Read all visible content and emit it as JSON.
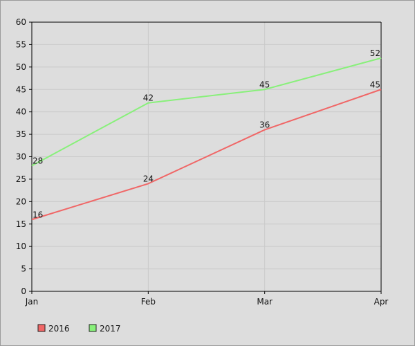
{
  "chart_data": {
    "type": "line",
    "categories": [
      "Jan",
      "Feb",
      "Mar",
      "Apr"
    ],
    "series": [
      {
        "name": "2016",
        "values": [
          16,
          24,
          36,
          45
        ],
        "color": "#f06666"
      },
      {
        "name": "2017",
        "values": [
          28,
          42,
          45,
          52
        ],
        "color": "#88f07a"
      }
    ],
    "ylim": [
      0,
      60
    ],
    "y_ticks": [
      0,
      5,
      10,
      15,
      20,
      25,
      30,
      35,
      40,
      45,
      50,
      55,
      60
    ],
    "grid": true,
    "legend_position": "bottom-left",
    "data_labels": true,
    "colors": {
      "background": "#dddddd",
      "gridline": "#c9c9c9",
      "axis": "#000000"
    }
  }
}
